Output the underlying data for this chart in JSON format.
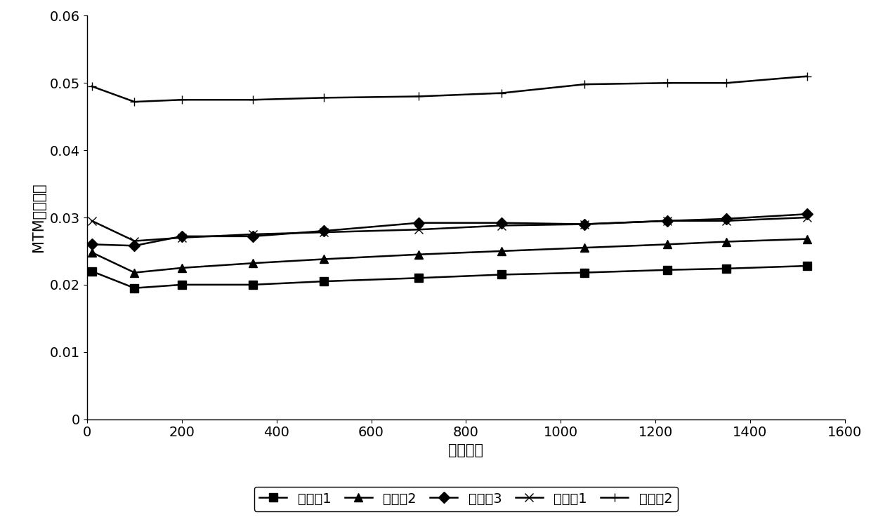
{
  "x": [
    10,
    100,
    200,
    350,
    500,
    700,
    875,
    1050,
    1225,
    1350,
    1520
  ],
  "series": {
    "实施例1": [
      0.022,
      0.0195,
      0.02,
      0.02,
      0.0205,
      0.021,
      0.0215,
      0.0218,
      0.0222,
      0.0224,
      0.0228
    ],
    "实施例2": [
      0.0248,
      0.0218,
      0.0225,
      0.0232,
      0.0238,
      0.0245,
      0.025,
      0.0255,
      0.026,
      0.0264,
      0.0268
    ],
    "实施例3": [
      0.026,
      0.0258,
      0.0272,
      0.0272,
      0.028,
      0.0292,
      0.0292,
      0.029,
      0.0295,
      0.0298,
      0.0305
    ],
    "比较例1": [
      0.0295,
      0.0265,
      0.027,
      0.0275,
      0.0278,
      0.0282,
      0.0288,
      0.029,
      0.0295,
      0.0295,
      0.03
    ],
    "比较例2": [
      0.0495,
      0.0472,
      0.0475,
      0.0475,
      0.0478,
      0.048,
      0.0485,
      0.0498,
      0.05,
      0.05,
      0.051
    ]
  },
  "markers": {
    "实施例1": "s",
    "实施例2": "^",
    "实施例3": "D",
    "比较例1": "x",
    "比较例2": "+"
  },
  "xlabel": "时间，秒",
  "ylabel": "MTM牵引系数",
  "xlim": [
    0,
    1600
  ],
  "ylim": [
    0,
    0.06
  ],
  "yticks": [
    0,
    0.01,
    0.02,
    0.03,
    0.04,
    0.05,
    0.06
  ],
  "xticks": [
    0,
    200,
    400,
    600,
    800,
    1000,
    1200,
    1400,
    1600
  ],
  "line_color": "#000000",
  "marker_size": 8,
  "line_width": 1.8,
  "legend_ncol": 5,
  "font_size": 14,
  "tick_font_size": 14,
  "label_font_size": 15
}
